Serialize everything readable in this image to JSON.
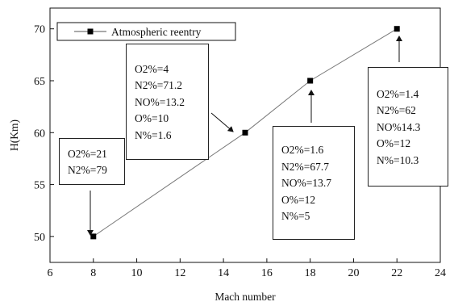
{
  "chart_data": {
    "type": "line",
    "xlabel": "Mach number",
    "ylabel": "H(Km)",
    "xlim": [
      6,
      24
    ],
    "ylim": [
      47.5,
      72
    ],
    "xticks": [
      "6",
      "8",
      "10",
      "12",
      "14",
      "16",
      "18",
      "20",
      "22",
      "24"
    ],
    "yticks": [
      "50",
      "55",
      "60",
      "65",
      "70"
    ],
    "grid": false,
    "legend_position": "top-left",
    "series": [
      {
        "name": "Atmospheric reentry",
        "color": "#000000",
        "marker": "square",
        "x": [
          8,
          15,
          18,
          22
        ],
        "y": [
          50,
          60,
          65,
          70
        ]
      }
    ],
    "annotations": [
      {
        "x": 8,
        "y": 50,
        "lines": [
          "O2%=21",
          "N2%=79"
        ]
      },
      {
        "x": 15,
        "y": 60,
        "lines": [
          "O2%=4",
          "N2%=71.2",
          "NO%=13.2",
          "O%=10",
          "N%=1.6"
        ]
      },
      {
        "x": 18,
        "y": 65,
        "lines": [
          "O2%=1.6",
          "N2%=67.7",
          "NO%=13.7",
          "O%=12",
          "N%=5"
        ]
      },
      {
        "x": 22,
        "y": 70,
        "lines": [
          "O2%=1.4",
          "N2%=62",
          "NO%14.3",
          "O%=12",
          "N%=10.3"
        ]
      }
    ]
  }
}
